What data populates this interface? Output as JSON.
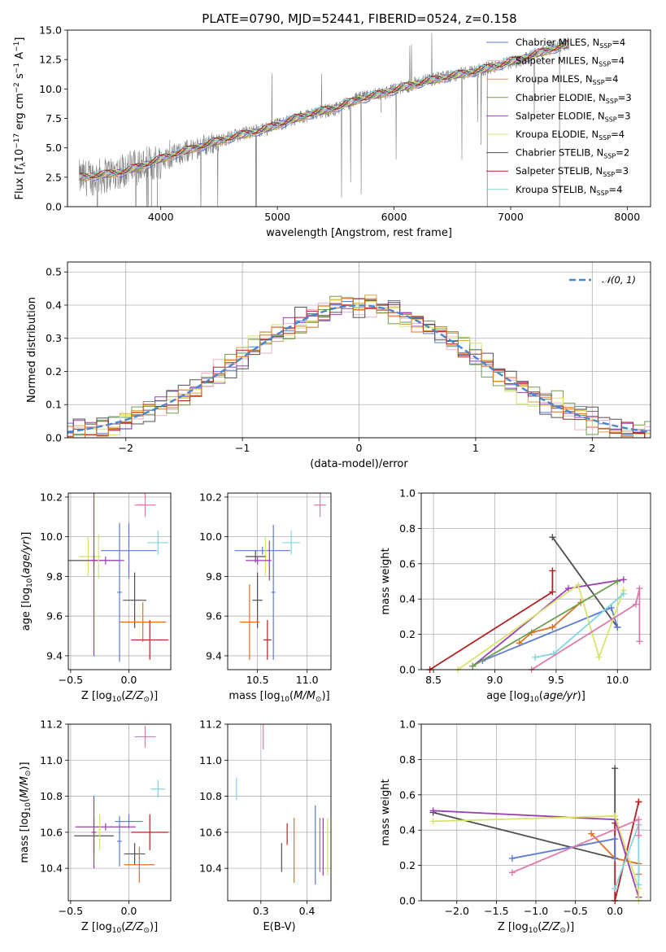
{
  "figure_title": "PLATE=0790, MJD=52441, FIBERID=0524, z=0.158",
  "colors": {
    "grid": "#b0b0b0",
    "axes": "#000000",
    "spectrum": "#808080",
    "normal_curve": "#4a86c8"
  },
  "chart_data": [
    {
      "id": "spectrum",
      "type": "line",
      "title": "PLATE=0790, MJD=52441, FIBERID=0524, z=0.158",
      "xlabel": "wavelength [Angstrom, rest frame]",
      "ylabel": "Flux [f_λ 10^-17 erg cm^-2 s^-1 A^-1]",
      "xlim": [
        3200,
        8200
      ],
      "ylim": [
        0,
        15
      ],
      "xticks": [
        4000,
        5000,
        6000,
        7000,
        8000
      ],
      "yticks": [
        0.0,
        2.5,
        5.0,
        7.5,
        10.0,
        12.5,
        15.0
      ],
      "grid": false,
      "legend_position": "top-right",
      "legend": [
        {
          "label": "Chabrier MILES, N_SSP=4",
          "color": "#5b7bd5"
        },
        {
          "label": "Salpeter MILES, N_SSP=4",
          "color": "#e8b3c8"
        },
        {
          "label": "Kroupa MILES, N_SSP=4",
          "color": "#d9a441"
        },
        {
          "label": "Chabrier ELODIE, N_SSP=3",
          "color": "#6e9e4b"
        },
        {
          "label": "Salpeter ELODIE, N_SSP=3",
          "color": "#9b3fb5"
        },
        {
          "label": "Kroupa ELODIE, N_SSP=4",
          "color": "#d8e36a"
        },
        {
          "label": "Chabrier STELIB, N_SSP=2",
          "color": "#505050"
        },
        {
          "label": "Salpeter STELIB, N_SSP=3",
          "color": "#b22222"
        },
        {
          "label": "Kroupa STELIB, N_SSP=4",
          "color": "#7fd6de"
        }
      ],
      "data_trend": {
        "x": [
          3300,
          3500,
          3700,
          3900,
          4100,
          4300,
          4500,
          4700,
          4900,
          5100,
          5300,
          5500,
          5700,
          5900,
          6100,
          6300,
          6500,
          6700,
          6900,
          7100,
          7300,
          7500
        ],
        "y": [
          2.4,
          2.6,
          3.2,
          3.6,
          4.3,
          5.0,
          5.6,
          6.2,
          6.6,
          7.3,
          7.9,
          8.3,
          9.2,
          9.6,
          10.2,
          10.8,
          11.1,
          11.5,
          12.0,
          12.5,
          13.3,
          13.9
        ]
      },
      "models_trend": {
        "x": [
          3300,
          3500,
          3700,
          3900,
          4100,
          4300,
          4500,
          4700,
          4900,
          5100,
          5300,
          5500,
          5700,
          5900,
          6100,
          6300,
          6500,
          6700,
          6900,
          7100,
          7300,
          7500
        ],
        "y": [
          2.5,
          2.7,
          3.0,
          3.7,
          4.4,
          5.0,
          5.6,
          6.1,
          6.6,
          7.3,
          7.9,
          8.4,
          9.1,
          9.6,
          10.2,
          10.7,
          11.1,
          11.5,
          12.0,
          12.6,
          13.2,
          13.8
        ]
      }
    },
    {
      "id": "residuals",
      "type": "line",
      "title": "",
      "xlabel": "(data-model)/error",
      "ylabel": "Normed distribution",
      "xlim": [
        -2.5,
        2.5
      ],
      "ylim": [
        0,
        0.53
      ],
      "xticks": [
        -2,
        -1,
        0,
        1,
        2
      ],
      "yticks": [
        0.0,
        0.1,
        0.2,
        0.3,
        0.4,
        0.5
      ],
      "grid": true,
      "legend_position": "top-right",
      "legend": [
        {
          "label": "𝒩(0, 1)",
          "color": "#4a86c8",
          "style": "dashed"
        }
      ],
      "curve": "N(0,1) density",
      "bin_width": 0.1,
      "histograms": [
        {
          "color": "#5b7bd5",
          "offset": 0.01
        },
        {
          "color": "#e8b3c8",
          "offset": -0.02
        },
        {
          "color": "#d9a441",
          "offset": 0.015
        },
        {
          "color": "#6e9e4b",
          "offset": 0.03
        },
        {
          "color": "#9b3fb5",
          "offset": -0.01
        },
        {
          "color": "#d8e36a",
          "offset": -0.025
        },
        {
          "color": "#505050",
          "offset": 0.02
        },
        {
          "color": "#b22222",
          "offset": 0.0
        },
        {
          "color": "#e07020",
          "offset": 0.01
        }
      ]
    },
    {
      "id": "age-vs-Z",
      "type": "scatter",
      "xlabel": "Z [log10(Z/Z⊙)]",
      "ylabel": "age [log10(age/yr)]",
      "xlim": [
        -0.52,
        0.36
      ],
      "ylim": [
        9.33,
        10.22
      ],
      "xticks": [
        -0.5,
        0.0
      ],
      "yticks": [
        9.4,
        9.6,
        9.8,
        10.0,
        10.2
      ],
      "grid": true,
      "points": [
        {
          "x": 0.14,
          "y": 10.16,
          "xerr": 0.09,
          "yerr": 0.06,
          "color": "#e07aa8"
        },
        {
          "x": 0.25,
          "y": 9.97,
          "xerr": 0.09,
          "yerr": 0.06,
          "color": "#7fd6de"
        },
        {
          "x": 0.0,
          "y": 9.93,
          "xerr": 0.24,
          "yerr": 0.14,
          "color": "#5b7bd5"
        },
        {
          "x": -0.35,
          "y": 9.9,
          "xerr": 0.08,
          "yerr": 0.1,
          "color": "#d8e36a"
        },
        {
          "x": -0.3,
          "y": 9.88,
          "xerr": 0.22,
          "yerr": 0.03,
          "color": "#505050"
        },
        {
          "x": -0.2,
          "y": 9.88,
          "xerr": 0.16,
          "yerr": 0.02,
          "color": "#9b3fb5"
        },
        {
          "x": -0.3,
          "y": 9.88,
          "xerr": 0.02,
          "yerr": 0.48,
          "color": "#c020c0"
        },
        {
          "x": -0.08,
          "y": 9.72,
          "xerr": 0.02,
          "yerr": 0.35,
          "color": "#5b7bd5"
        },
        {
          "x": 0.05,
          "y": 9.68,
          "xerr": 0.1,
          "yerr": 0.14,
          "color": "#505050"
        },
        {
          "x": 0.12,
          "y": 9.57,
          "xerr": 0.2,
          "yerr": 0.1,
          "color": "#e07020"
        },
        {
          "x": 0.18,
          "y": 9.48,
          "xerr": 0.16,
          "yerr": 0.1,
          "color": "#b22222"
        },
        {
          "x": -0.26,
          "y": 9.9,
          "xerr": 0.02,
          "yerr": 0.11,
          "color": "#d8e36a"
        }
      ]
    },
    {
      "id": "age-vs-mass",
      "type": "scatter",
      "xlabel": "mass [log10(M/M⊙)]",
      "ylabel": "",
      "xlim": [
        10.2,
        11.24
      ],
      "ylim": [
        9.33,
        10.22
      ],
      "xticks": [
        10.5,
        11.0
      ],
      "yticks": [
        9.4,
        9.6,
        9.8,
        10.0,
        10.2
      ],
      "grid": true,
      "points": [
        {
          "x": 11.13,
          "y": 10.16,
          "xerr": 0.06,
          "yerr": 0.06,
          "color": "#e07aa8"
        },
        {
          "x": 10.84,
          "y": 9.97,
          "xerr": 0.09,
          "yerr": 0.06,
          "color": "#7fd6de"
        },
        {
          "x": 10.55,
          "y": 9.93,
          "xerr": 0.28,
          "yerr": 0.02,
          "color": "#5b7bd5"
        },
        {
          "x": 10.66,
          "y": 9.72,
          "xerr": 0.02,
          "yerr": 0.34,
          "color": "#5b7bd5"
        },
        {
          "x": 10.58,
          "y": 9.9,
          "xerr": 0.02,
          "yerr": 0.1,
          "color": "#d8e36a"
        },
        {
          "x": 10.48,
          "y": 9.9,
          "xerr": 0.1,
          "yerr": 0.03,
          "color": "#505050"
        },
        {
          "x": 10.5,
          "y": 9.88,
          "xerr": 0.12,
          "yerr": 0.02,
          "color": "#9b3fb5"
        },
        {
          "x": 10.62,
          "y": 9.88,
          "xerr": 0.02,
          "yerr": 0.1,
          "color": "#c020c0"
        },
        {
          "x": 10.5,
          "y": 9.68,
          "xerr": 0.05,
          "yerr": 0.14,
          "color": "#505050"
        },
        {
          "x": 10.42,
          "y": 9.57,
          "xerr": 0.1,
          "yerr": 0.19,
          "color": "#e07020"
        },
        {
          "x": 10.6,
          "y": 9.48,
          "xerr": 0.04,
          "yerr": 0.1,
          "color": "#b22222"
        }
      ]
    },
    {
      "id": "weight-vs-age",
      "type": "line",
      "xlabel": "age [log10(age/yr)]",
      "ylabel": "mass weight",
      "xlim": [
        8.4,
        10.27
      ],
      "ylim": [
        0,
        1.0
      ],
      "xticks": [
        8.5,
        9.0,
        9.5,
        10.0
      ],
      "yticks": [
        0.0,
        0.2,
        0.4,
        0.6,
        0.8,
        1.0
      ],
      "grid": true,
      "series": [
        {
          "color": "#505050",
          "x": [
            9.47,
            10.0
          ],
          "y": [
            0.75,
            0.24
          ]
        },
        {
          "color": "#b22222",
          "x": [
            8.47,
            9.47,
            9.47
          ],
          "y": [
            0.0,
            0.44,
            0.56
          ]
        },
        {
          "color": "#9b3fb5",
          "x": [
            8.82,
            9.6,
            10.05
          ],
          "y": [
            0.02,
            0.46,
            0.51
          ]
        },
        {
          "color": "#e07020",
          "x": [
            9.2,
            9.3,
            9.47,
            9.7
          ],
          "y": [
            0.15,
            0.21,
            0.24,
            0.38
          ]
        },
        {
          "color": "#5b7bd5",
          "x": [
            8.9,
            9.95,
            10.0
          ],
          "y": [
            0.05,
            0.35,
            0.24
          ]
        },
        {
          "color": "#d8e36a",
          "x": [
            8.7,
            9.68,
            9.85,
            10.05
          ],
          "y": [
            0.0,
            0.48,
            0.07,
            0.45
          ]
        },
        {
          "color": "#7fd6de",
          "x": [
            9.33,
            9.48,
            10.05
          ],
          "y": [
            0.07,
            0.09,
            0.43
          ]
        },
        {
          "color": "#e07aa8",
          "x": [
            9.3,
            10.15,
            10.18,
            10.18
          ],
          "y": [
            0.0,
            0.37,
            0.46,
            0.16
          ]
        },
        {
          "color": "#6e9e4b",
          "x": [
            8.82,
            10.0
          ],
          "y": [
            0.02,
            0.5
          ]
        }
      ]
    },
    {
      "id": "mass-vs-Z",
      "type": "scatter",
      "xlabel": "Z [log10(Z/Z⊙)]",
      "ylabel": "mass [log10(M/M⊙)]",
      "xlim": [
        -0.52,
        0.36
      ],
      "ylim": [
        10.22,
        11.2
      ],
      "xticks": [
        -0.5,
        0.0
      ],
      "yticks": [
        10.4,
        10.6,
        10.8,
        11.0,
        11.2
      ],
      "grid": true,
      "points": [
        {
          "x": 0.14,
          "y": 11.13,
          "xerr": 0.09,
          "yerr": 0.06,
          "color": "#e07aa8"
        },
        {
          "x": 0.25,
          "y": 10.84,
          "xerr": 0.06,
          "yerr": 0.05,
          "color": "#7fd6de"
        },
        {
          "x": 0.0,
          "y": 10.66,
          "xerr": 0.12,
          "yerr": 0.04,
          "color": "#5b7bd5"
        },
        {
          "x": -0.08,
          "y": 10.55,
          "xerr": 0.02,
          "yerr": 0.14,
          "color": "#5b7bd5"
        },
        {
          "x": -0.2,
          "y": 10.63,
          "xerr": 0.26,
          "yerr": 0.02,
          "color": "#9b3fb5"
        },
        {
          "x": -0.3,
          "y": 10.58,
          "xerr": 0.17,
          "yerr": 0.1,
          "color": "#505050"
        },
        {
          "x": -0.25,
          "y": 10.6,
          "xerr": 0.02,
          "yerr": 0.1,
          "color": "#d8e36a"
        },
        {
          "x": -0.3,
          "y": 10.6,
          "xerr": 0.02,
          "yerr": 0.2,
          "color": "#c020c0"
        },
        {
          "x": 0.05,
          "y": 10.48,
          "xerr": 0.09,
          "yerr": 0.06,
          "color": "#505050"
        },
        {
          "x": 0.09,
          "y": 10.42,
          "xerr": 0.13,
          "yerr": 0.1,
          "color": "#e07020"
        },
        {
          "x": 0.18,
          "y": 10.6,
          "xerr": 0.16,
          "yerr": 0.1,
          "color": "#b22222"
        }
      ]
    },
    {
      "id": "mass-vs-EBV",
      "type": "scatter",
      "xlabel": "E(B-V)",
      "ylabel": "",
      "xlim": [
        0.228,
        0.452
      ],
      "ylim": [
        10.22,
        11.2
      ],
      "xticks": [
        0.3,
        0.4
      ],
      "yticks": [
        10.4,
        10.6,
        10.8,
        11.0,
        11.2
      ],
      "grid": true,
      "points": [
        {
          "x": 0.305,
          "y": 11.13,
          "xerr": 0.0,
          "yerr": 0.07,
          "color": "#e07aa8"
        },
        {
          "x": 0.247,
          "y": 10.84,
          "xerr": 0.0,
          "yerr": 0.06,
          "color": "#7fd6de"
        },
        {
          "x": 0.345,
          "y": 10.46,
          "xerr": 0.0,
          "yerr": 0.08,
          "color": "#505050"
        },
        {
          "x": 0.357,
          "y": 10.59,
          "xerr": 0.0,
          "yerr": 0.06,
          "color": "#b22222"
        },
        {
          "x": 0.372,
          "y": 10.5,
          "xerr": 0.0,
          "yerr": 0.18,
          "color": "#e07020"
        },
        {
          "x": 0.418,
          "y": 10.53,
          "xerr": 0.0,
          "yerr": 0.22,
          "color": "#5b7bd5"
        },
        {
          "x": 0.428,
          "y": 10.53,
          "xerr": 0.0,
          "yerr": 0.15,
          "color": "#6e9e4b"
        },
        {
          "x": 0.435,
          "y": 10.52,
          "xerr": 0.0,
          "yerr": 0.16,
          "color": "#c020c0"
        },
        {
          "x": 0.445,
          "y": 10.52,
          "xerr": 0.0,
          "yerr": 0.16,
          "color": "#d8e36a"
        }
      ]
    },
    {
      "id": "weight-vs-Z",
      "type": "line",
      "xlabel": "Z [log10(Z/Z⊙)]",
      "ylabel": "mass weight",
      "xlim": [
        -2.45,
        0.45
      ],
      "ylim": [
        0,
        1.0
      ],
      "xticks": [
        -2.0,
        -1.5,
        -1.0,
        -0.5,
        0.0
      ],
      "yticks": [
        0.0,
        0.2,
        0.4,
        0.6,
        0.8,
        1.0
      ],
      "grid": true,
      "series": [
        {
          "color": "#505050",
          "x": [
            0.0,
            0.0,
            -2.3
          ],
          "y": [
            0.75,
            0.24,
            0.5
          ]
        },
        {
          "color": "#b22222",
          "x": [
            0.0,
            0.0,
            0.3,
            0.3
          ],
          "y": [
            0.44,
            0.0,
            0.56,
            0.56
          ]
        },
        {
          "color": "#9b3fb5",
          "x": [
            -2.3,
            0.0,
            0.0,
            0.3
          ],
          "y": [
            0.51,
            0.46,
            0.46,
            0.02
          ]
        },
        {
          "color": "#e07020",
          "x": [
            -0.3,
            0.0,
            0.3,
            0.3
          ],
          "y": [
            0.38,
            0.24,
            0.21,
            0.15
          ]
        },
        {
          "color": "#5b7bd5",
          "x": [
            -1.3,
            0.0,
            0.0
          ],
          "y": [
            0.24,
            0.35,
            0.24
          ]
        },
        {
          "color": "#d8e36a",
          "x": [
            -2.3,
            0.0,
            0.3,
            0.3
          ],
          "y": [
            0.45,
            0.48,
            0.07,
            0.0
          ]
        },
        {
          "color": "#7fd6de",
          "x": [
            0.0,
            0.3,
            0.3
          ],
          "y": [
            0.07,
            0.43,
            0.09
          ]
        },
        {
          "color": "#e07aa8",
          "x": [
            -1.3,
            0.3,
            0.3
          ],
          "y": [
            0.16,
            0.46,
            0.37
          ]
        }
      ]
    }
  ]
}
